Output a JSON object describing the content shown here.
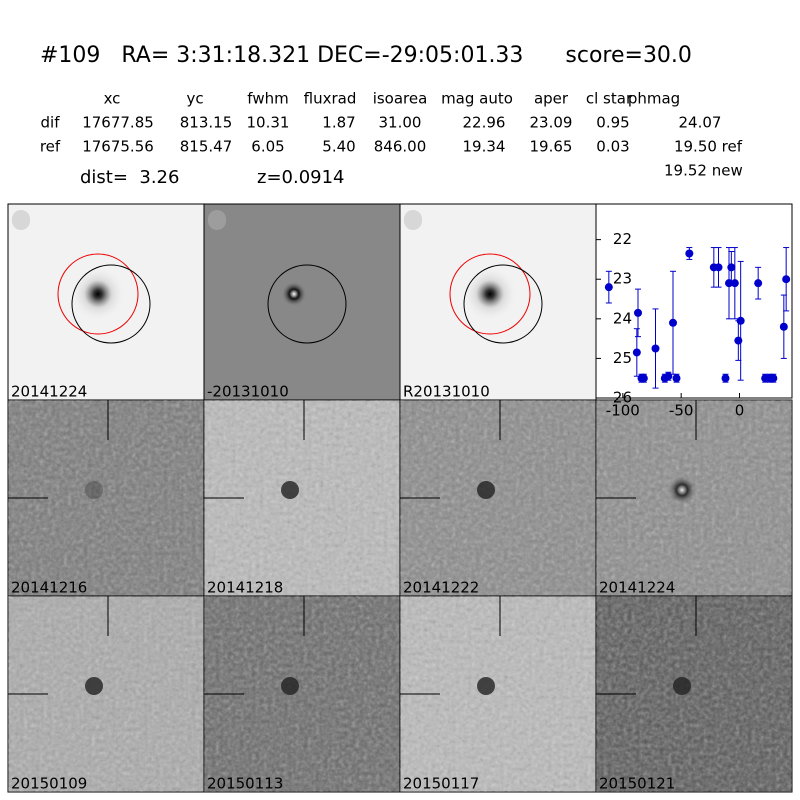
{
  "header": {
    "title": "#109   RA= 3:31:18.321 DEC=-29:05:01.33      score=30.0"
  },
  "table": {
    "columns": [
      "xc",
      "yc",
      "fwhm",
      "fluxrad",
      "isoarea",
      "mag auto",
      "aper",
      "cl star",
      "phmag"
    ],
    "rows": [
      [
        "dif",
        "17677.85",
        "813.15",
        "10.31",
        "1.87",
        "31.00",
        "22.96",
        "23.09",
        "0.95",
        "24.07"
      ],
      [
        "ref",
        "17675.56",
        "815.47",
        "6.05",
        "5.40",
        "846.00",
        "19.34",
        "19.65",
        "0.03",
        "19.50 ref"
      ]
    ],
    "extra": "19.52 new"
  },
  "dist": "dist=  3.26",
  "z": "z=0.0914",
  "panels": [
    [
      "20141224",
      "-20131010",
      "R20131010"
    ],
    [
      "20141216",
      "20141218",
      "20141222",
      "20141224"
    ],
    [
      "20150109",
      "20150113",
      "20150117",
      "20150121"
    ]
  ],
  "light_curve": {
    "type": "scatter",
    "color": "#0000cc",
    "x": [
      -112,
      -88,
      -87,
      -84,
      -82,
      -72,
      -64,
      -61,
      -57,
      -54,
      -43,
      -22,
      -18,
      -12,
      -9,
      -7,
      -4,
      -1,
      1,
      16,
      22,
      26,
      29,
      38,
      40
    ],
    "values": [
      23.2,
      24.85,
      23.85,
      25.5,
      25.5,
      24.75,
      25.5,
      25.45,
      24.1,
      25.5,
      22.35,
      22.7,
      22.7,
      25.5,
      23.1,
      22.7,
      23.1,
      24.55,
      24.05,
      23.1,
      25.5,
      25.5,
      25.5,
      24.2,
      23.0
    ],
    "errors": [
      0.4,
      0.6,
      0.6,
      0.1,
      0.1,
      1.0,
      0.1,
      0.1,
      1.3,
      0.1,
      0.15,
      0.5,
      0.5,
      0.1,
      0.9,
      0.4,
      0.9,
      0.5,
      1.5,
      0.4,
      0.1,
      0.1,
      0.1,
      0.8,
      0.8
    ],
    "xlim": [
      -123,
      45
    ],
    "ylim": [
      26,
      21.1
    ],
    "xticks": [
      -100,
      -50,
      0
    ],
    "yticks": [
      22,
      23,
      24,
      25,
      26
    ]
  }
}
